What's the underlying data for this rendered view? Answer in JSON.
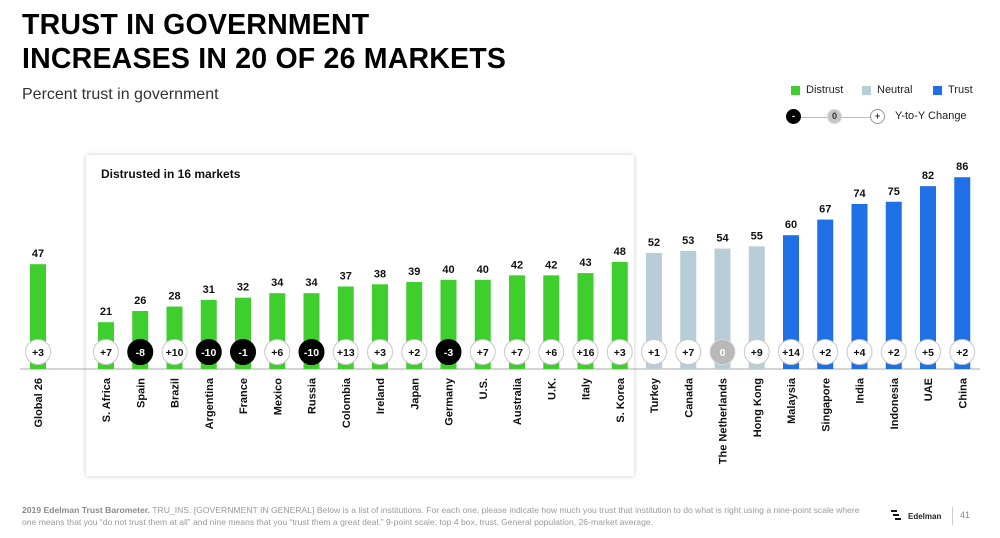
{
  "title_lines": [
    "TRUST IN GOVERNMENT",
    "INCREASES IN 20 OF 26 MARKETS"
  ],
  "subtitle": "Percent trust in government",
  "legend": {
    "distrust": "Distrust",
    "neutral": "Neutral",
    "trust": "Trust",
    "yoy_minus": "-",
    "yoy_zero": "0",
    "yoy_plus": "+",
    "yoy_label": "Y-to-Y Change"
  },
  "colors": {
    "distrust": "#3ecf2e",
    "neutral": "#b9cdd8",
    "trust": "#1f6fe6",
    "change_negative": "#000000",
    "change_zero": "#b9b9b9",
    "change_positive": "#ffffff"
  },
  "callout": {
    "text": "Distrusted in 16 markets"
  },
  "chart_data": {
    "type": "bar",
    "categories": [
      "Global 26",
      "S. Africa",
      "Spain",
      "Brazil",
      "Argentina",
      "France",
      "Mexico",
      "Russia",
      "Colombia",
      "Ireland",
      "Japan",
      "Germany",
      "U.S.",
      "Australia",
      "U.K.",
      "Italy",
      "S. Korea",
      "Turkey",
      "Canada",
      "The Netherlands",
      "Hong Kong",
      "Malaysia",
      "Singapore",
      "India",
      "Indonesia",
      "UAE",
      "China"
    ],
    "values": [
      47,
      21,
      26,
      28,
      31,
      32,
      34,
      34,
      37,
      38,
      39,
      40,
      40,
      42,
      42,
      43,
      48,
      52,
      53,
      54,
      55,
      60,
      67,
      74,
      75,
      82,
      86
    ],
    "changes": [
      "+3",
      "+7",
      "-8",
      "+10",
      "-10",
      "-1",
      "+6",
      "-10",
      "+13",
      "+3",
      "+2",
      "-3",
      "+7",
      "+7",
      "+6",
      "+16",
      "+3",
      "+1",
      "+7",
      "0",
      "+9",
      "+14",
      "+2",
      "+4",
      "+2",
      "+5",
      "+2"
    ],
    "categories_status": [
      "distrust",
      "distrust",
      "distrust",
      "distrust",
      "distrust",
      "distrust",
      "distrust",
      "distrust",
      "distrust",
      "distrust",
      "distrust",
      "distrust",
      "distrust",
      "distrust",
      "distrust",
      "distrust",
      "distrust",
      "neutral",
      "neutral",
      "neutral",
      "neutral",
      "trust",
      "trust",
      "trust",
      "trust",
      "trust",
      "trust"
    ],
    "ylim": [
      0,
      100
    ]
  },
  "footer": {
    "bold": "2019 Edelman Trust Barometer.",
    "text": " TRU_INS. [GOVERNMENT IN GENERAL] Below is a list of institutions. For each one, please indicate how much you trust that institution to do what is right using a nine-point scale where one means that you “do not trust them at all” and nine means that you “trust them a great deal.” 9-point scale; top 4 box, trust. General population, 26-market average."
  },
  "brand": "Edelman",
  "page_number": "41"
}
